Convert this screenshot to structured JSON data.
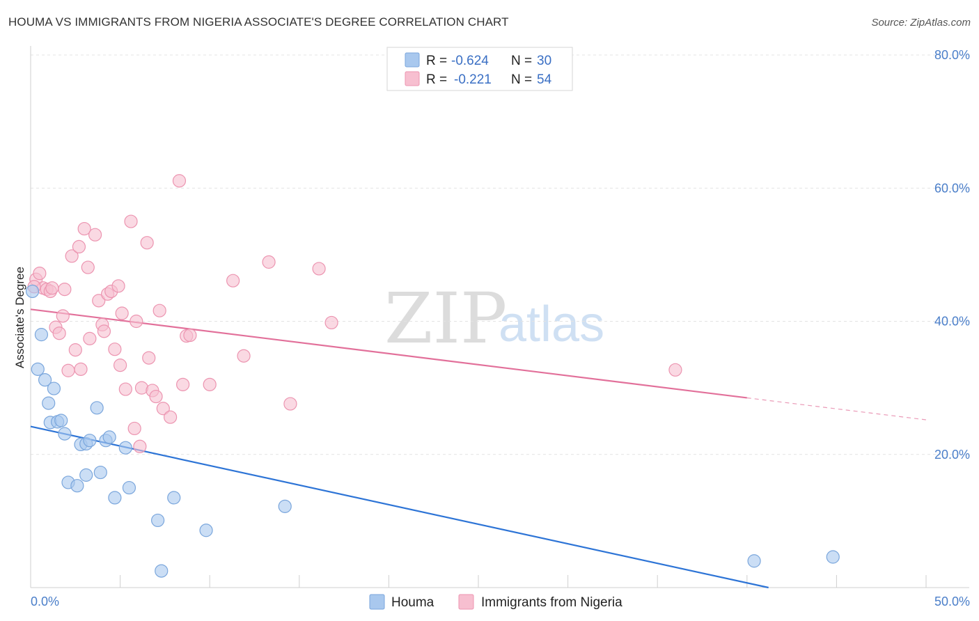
{
  "title": "HOUMA VS IMMIGRANTS FROM NIGERIA ASSOCIATE'S DEGREE CORRELATION CHART",
  "source": "Source: ZipAtlas.com",
  "watermark": {
    "zip": "ZIP",
    "atlas": "atlas"
  },
  "legend_box": {
    "rows": [
      {
        "r_label": "R =",
        "r_value": "-0.624",
        "n_label": "N =",
        "n_value": "30",
        "color": "#a9c8ee",
        "stroke": "#7aa6dc"
      },
      {
        "r_label": "R =",
        "r_value": "-0.221",
        "n_label": "N =",
        "n_value": "54",
        "color": "#f7bfd0",
        "stroke": "#ec94b0"
      }
    ]
  },
  "bottom_legend": [
    {
      "label": "Houma",
      "color": "#a9c8ee",
      "stroke": "#7aa6dc"
    },
    {
      "label": "Immigrants from Nigeria",
      "color": "#f7bfd0",
      "stroke": "#ec94b0"
    }
  ],
  "chart_data": {
    "type": "scatter",
    "title": "HOUMA VS IMMIGRANTS FROM NIGERIA ASSOCIATE'S DEGREE CORRELATION CHART",
    "xlabel": "",
    "ylabel": "Associate's Degree",
    "xlim": [
      0,
      50
    ],
    "ylim": [
      0,
      80
    ],
    "x_tick_labels": [
      "0.0%",
      "50.0%"
    ],
    "y_ticks": [
      20,
      40,
      60,
      80
    ],
    "y_tick_labels": [
      "20.0%",
      "40.0%",
      "60.0%",
      "80.0%"
    ],
    "grid": true,
    "legend_position": "top-center",
    "series": [
      {
        "name": "Houma",
        "color": "#a9c8ee",
        "stroke": "#7aa6dc",
        "line_color": "#2d74d6",
        "trend": {
          "x": [
            0,
            41.2
          ],
          "y": [
            24.2,
            0
          ]
        },
        "points": [
          [
            0.1,
            44.5
          ],
          [
            0.4,
            32.8
          ],
          [
            0.6,
            38.0
          ],
          [
            0.8,
            31.2
          ],
          [
            1.0,
            27.7
          ],
          [
            1.1,
            24.8
          ],
          [
            1.3,
            29.9
          ],
          [
            1.5,
            24.9
          ],
          [
            1.7,
            25.1
          ],
          [
            1.9,
            23.1
          ],
          [
            2.1,
            15.8
          ],
          [
            2.6,
            15.3
          ],
          [
            2.8,
            21.5
          ],
          [
            3.1,
            21.6
          ],
          [
            3.1,
            16.9
          ],
          [
            3.3,
            22.1
          ],
          [
            3.7,
            27.0
          ],
          [
            3.9,
            17.3
          ],
          [
            4.2,
            22.1
          ],
          [
            4.4,
            22.6
          ],
          [
            4.7,
            13.5
          ],
          [
            5.3,
            21.0
          ],
          [
            5.5,
            15.0
          ],
          [
            7.1,
            10.1
          ],
          [
            7.3,
            2.5
          ],
          [
            8.0,
            13.5
          ],
          [
            9.8,
            8.6
          ],
          [
            14.2,
            12.2
          ],
          [
            40.4,
            4.0
          ],
          [
            44.8,
            4.6
          ]
        ]
      },
      {
        "name": "Immigrants from Nigeria",
        "color": "#f7bfd0",
        "stroke": "#ec94b0",
        "line_color": "#e2709a",
        "trend": {
          "x": [
            0,
            40.0
          ],
          "y": [
            41.8,
            28.5
          ]
        },
        "trend_dashed": {
          "x": [
            40.0,
            50.0
          ],
          "y": [
            28.5,
            25.2
          ]
        },
        "points": [
          [
            0.3,
            46.3
          ],
          [
            0.5,
            47.2
          ],
          [
            0.7,
            45.0
          ],
          [
            0.9,
            44.8
          ],
          [
            1.1,
            44.5
          ],
          [
            1.4,
            39.1
          ],
          [
            1.6,
            38.2
          ],
          [
            1.8,
            40.8
          ],
          [
            1.9,
            44.8
          ],
          [
            2.1,
            32.6
          ],
          [
            2.3,
            49.8
          ],
          [
            2.5,
            35.7
          ],
          [
            2.7,
            51.2
          ],
          [
            2.8,
            32.8
          ],
          [
            3.0,
            53.9
          ],
          [
            3.2,
            48.1
          ],
          [
            3.3,
            37.4
          ],
          [
            3.6,
            53.0
          ],
          [
            3.8,
            43.1
          ],
          [
            4.0,
            39.5
          ],
          [
            4.1,
            38.5
          ],
          [
            4.3,
            44.1
          ],
          [
            4.5,
            44.5
          ],
          [
            4.7,
            35.8
          ],
          [
            4.9,
            45.3
          ],
          [
            5.0,
            33.4
          ],
          [
            5.1,
            41.2
          ],
          [
            5.3,
            29.8
          ],
          [
            5.6,
            55.0
          ],
          [
            5.8,
            23.9
          ],
          [
            5.9,
            40.0
          ],
          [
            6.1,
            21.2
          ],
          [
            6.2,
            30.0
          ],
          [
            6.5,
            51.8
          ],
          [
            6.6,
            34.5
          ],
          [
            6.8,
            29.6
          ],
          [
            7.0,
            28.7
          ],
          [
            7.2,
            41.6
          ],
          [
            7.4,
            26.9
          ],
          [
            7.8,
            25.6
          ],
          [
            8.3,
            61.1
          ],
          [
            8.5,
            30.5
          ],
          [
            8.7,
            37.8
          ],
          [
            8.9,
            37.9
          ],
          [
            10.0,
            30.5
          ],
          [
            11.3,
            46.1
          ],
          [
            11.9,
            34.8
          ],
          [
            13.3,
            48.9
          ],
          [
            14.5,
            27.6
          ],
          [
            16.1,
            47.9
          ],
          [
            16.8,
            39.8
          ],
          [
            36.0,
            32.7
          ],
          [
            0.2,
            45.2
          ],
          [
            1.2,
            45.0
          ]
        ]
      }
    ]
  }
}
